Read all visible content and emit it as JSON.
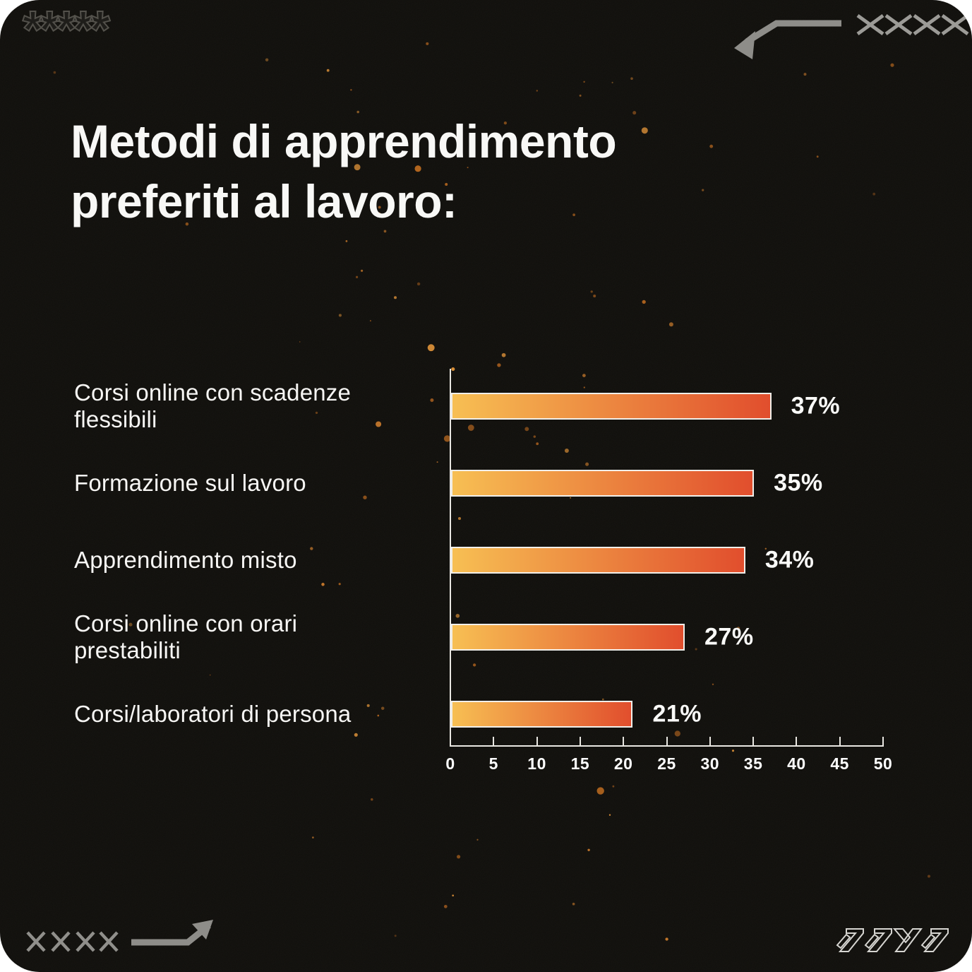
{
  "card": {
    "background_color": "#0F0E0B",
    "page_background": "#FFFFFF"
  },
  "title": {
    "line1": "Metodi di apprendimento",
    "line2": "preferiti al lavoro:"
  },
  "chart_data": {
    "type": "bar",
    "orientation": "horizontal",
    "title": "Metodi di apprendimento preferiti al lavoro:",
    "categories": [
      "Corsi online con scadenze\nflessibili",
      "Formazione sul lavoro",
      "Apprendimento misto",
      "Corsi online con orari\nprestabiliti",
      "Corsi/laboratori di persona"
    ],
    "values": [
      37,
      35,
      34,
      27,
      21
    ],
    "value_labels": [
      "37%",
      "35%",
      "34%",
      "27%",
      "21%"
    ],
    "xlabel": "",
    "ylabel": "",
    "xlim": [
      0,
      50
    ],
    "x_ticks": [
      0,
      5,
      10,
      15,
      20,
      25,
      30,
      35,
      40,
      45,
      50
    ],
    "grid": false,
    "legend": false,
    "bar_gradient_start": "#F7BF53",
    "bar_gradient_end": "#E14E2D",
    "bar_border_color": "#F0EEE9",
    "axis_color": "#E9E7E2",
    "category_label_color": "#F7F6F4",
    "value_label_color": "#FAFAF8",
    "tick_label_color": "#FFFFFF"
  },
  "decorations": {
    "asterisks": "*****",
    "top_right_x_marks": "××××",
    "bottom_left_x_marks": "××××",
    "return_arrow_color": "#8E8D89",
    "x_marks_color": "#9C9B97",
    "brand_logo_outline_color": "#D6D5D1",
    "speckle_colors": [
      "#B5671F",
      "#C87A2C",
      "#DB9038",
      "#9E5A1E"
    ]
  }
}
